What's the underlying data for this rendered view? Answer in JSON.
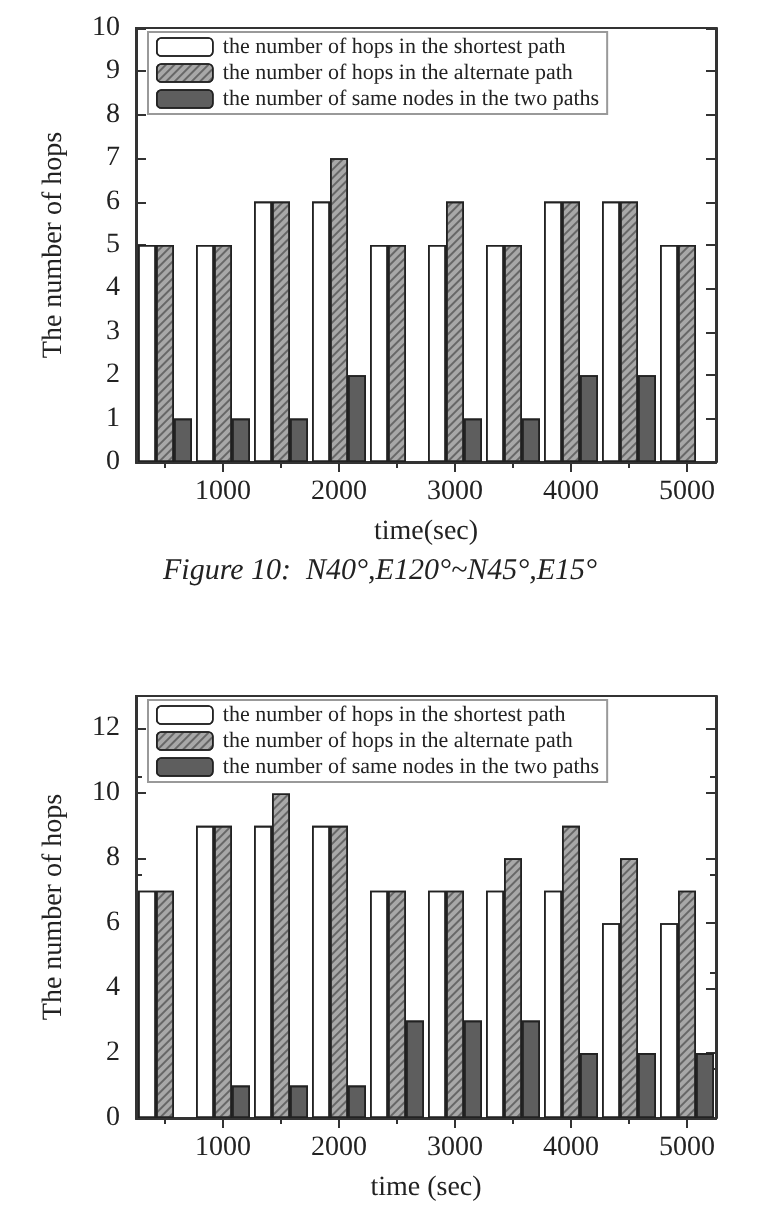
{
  "chart_data": [
    {
      "type": "bar",
      "xlabel": "time(sec)",
      "ylabel": "The number of hops",
      "annotations": [
        "Figure 10:  N40°,E120°~N45°,E15°"
      ],
      "x": [
        500,
        1000,
        1500,
        2000,
        2500,
        3000,
        3500,
        4000,
        4500,
        5000
      ],
      "series": [
        {
          "name": "the number of hops in the shortest path",
          "color": "#ffffff",
          "values": [
            5,
            5,
            6,
            6,
            5,
            5,
            5,
            6,
            6,
            5
          ]
        },
        {
          "name": "the number of hops in the alternate path",
          "color": "#a8a8a8",
          "values": [
            5,
            5,
            6,
            7,
            5,
            6,
            5,
            6,
            6,
            5
          ]
        },
        {
          "name": "the number of same nodes in the two paths",
          "color": "#5e5e5e",
          "values": [
            1,
            1,
            1,
            2,
            null,
            1,
            1,
            2,
            2,
            null
          ]
        }
      ],
      "xlim": [
        250,
        5250
      ],
      "xticks": [
        1000,
        2000,
        3000,
        4000,
        5000
      ],
      "ylim": [
        0,
        10
      ],
      "yticks": [
        0,
        1,
        2,
        3,
        4,
        5,
        6,
        7,
        8,
        9,
        10
      ],
      "legend": "top left",
      "grid": false
    },
    {
      "type": "bar",
      "xlabel": "time (sec)",
      "ylabel": "The number of hops",
      "x": [
        500,
        1000,
        1500,
        2000,
        2500,
        3000,
        3500,
        4000,
        4500,
        5000
      ],
      "series": [
        {
          "name": "the number of hops in the shortest path",
          "color": "#ffffff",
          "values": [
            7,
            9,
            9,
            9,
            7,
            7,
            7,
            7,
            6,
            6
          ]
        },
        {
          "name": "the number of hops in the alternate path",
          "color": "#a8a8a8",
          "values": [
            7,
            9,
            10,
            9,
            7,
            7,
            8,
            9,
            8,
            7
          ]
        },
        {
          "name": "the number of same nodes in the two paths",
          "color": "#5e5e5e",
          "values": [
            null,
            1,
            1,
            1,
            3,
            3,
            3,
            2,
            2,
            2
          ]
        }
      ],
      "xlim": [
        250,
        5250
      ],
      "xticks": [
        1000,
        2000,
        3000,
        4000,
        5000
      ],
      "ylim": [
        0,
        13
      ],
      "yticks": [
        0,
        2,
        4,
        6,
        8,
        10,
        12
      ],
      "legend": "top left",
      "grid": false
    }
  ]
}
